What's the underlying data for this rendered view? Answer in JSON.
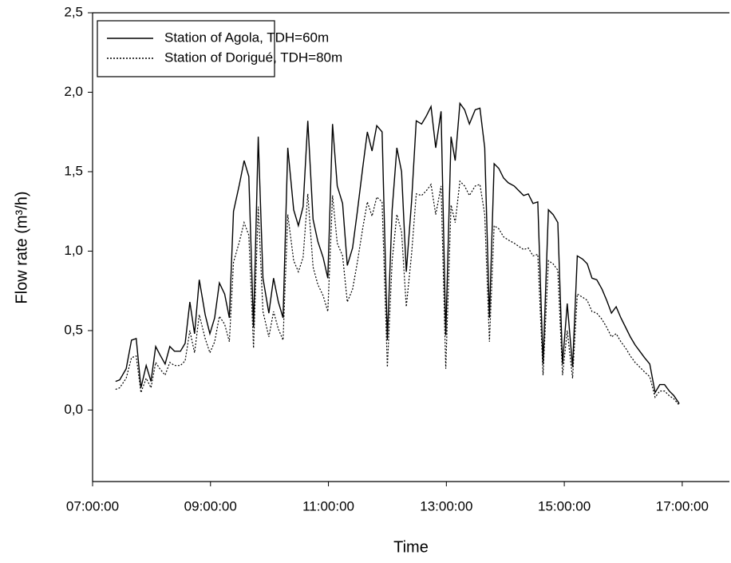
{
  "chart_data": {
    "type": "line",
    "x_label": "Time",
    "y_label": "Flow rate (m³/h)",
    "x": [
      7.39,
      7.46,
      7.57,
      7.66,
      7.74,
      7.82,
      7.91,
      7.99,
      8.07,
      8.14,
      8.23,
      8.31,
      8.39,
      8.49,
      8.57,
      8.65,
      8.73,
      8.81,
      8.91,
      8.99,
      9.07,
      9.15,
      9.24,
      9.32,
      9.39,
      9.49,
      9.57,
      9.65,
      9.73,
      9.81,
      9.89,
      9.99,
      10.07,
      10.15,
      10.23,
      10.31,
      10.41,
      10.49,
      10.57,
      10.65,
      10.74,
      10.82,
      10.91,
      10.99,
      11.07,
      11.15,
      11.24,
      11.32,
      11.41,
      11.49,
      11.58,
      11.66,
      11.74,
      11.82,
      11.91,
      12.0,
      12.08,
      12.16,
      12.24,
      12.32,
      12.41,
      12.49,
      12.58,
      12.66,
      12.74,
      12.82,
      12.91,
      12.99,
      13.08,
      13.15,
      13.23,
      13.31,
      13.39,
      13.49,
      13.57,
      13.65,
      13.73,
      13.81,
      13.89,
      13.97,
      14.05,
      14.15,
      14.23,
      14.31,
      14.39,
      14.47,
      14.55,
      14.64,
      14.73,
      14.81,
      14.89,
      14.97,
      15.05,
      15.14,
      15.22,
      15.31,
      15.39,
      15.47,
      15.55,
      15.64,
      15.72,
      15.8,
      15.88,
      15.96,
      16.04,
      16.12,
      16.2,
      16.28,
      16.36,
      16.45,
      16.54,
      16.62,
      16.7,
      16.78,
      16.86,
      16.95
    ],
    "series": [
      {
        "name": "Station of Agola, TDH=60m",
        "color": "#000000",
        "line_style": "solid",
        "values": [
          0.18,
          0.19,
          0.26,
          0.44,
          0.45,
          0.14,
          0.28,
          0.18,
          0.4,
          0.35,
          0.29,
          0.4,
          0.37,
          0.37,
          0.42,
          0.68,
          0.48,
          0.82,
          0.6,
          0.48,
          0.58,
          0.8,
          0.73,
          0.58,
          1.25,
          1.42,
          1.57,
          1.47,
          0.52,
          1.72,
          0.83,
          0.61,
          0.83,
          0.68,
          0.58,
          1.65,
          1.26,
          1.16,
          1.28,
          1.82,
          1.2,
          1.06,
          0.96,
          0.83,
          1.8,
          1.41,
          1.3,
          0.91,
          1.02,
          1.25,
          1.52,
          1.75,
          1.63,
          1.79,
          1.75,
          0.44,
          1.26,
          1.65,
          1.5,
          0.87,
          1.31,
          1.82,
          1.8,
          1.85,
          1.91,
          1.65,
          1.88,
          0.47,
          1.72,
          1.57,
          1.93,
          1.89,
          1.8,
          1.89,
          1.9,
          1.65,
          0.58,
          1.55,
          1.52,
          1.46,
          1.43,
          1.41,
          1.38,
          1.35,
          1.36,
          1.3,
          1.31,
          0.29,
          1.26,
          1.23,
          1.18,
          0.29,
          0.67,
          0.27,
          0.97,
          0.95,
          0.92,
          0.83,
          0.82,
          0.76,
          0.69,
          0.61,
          0.65,
          0.58,
          0.52,
          0.46,
          0.41,
          0.37,
          0.33,
          0.29,
          0.11,
          0.16,
          0.16,
          0.12,
          0.09,
          0.04
        ]
      },
      {
        "name": "Station of Dorigué, TDH=80m",
        "color": "#000000",
        "line_style": "dotted",
        "values": [
          0.13,
          0.14,
          0.2,
          0.33,
          0.34,
          0.11,
          0.2,
          0.14,
          0.3,
          0.26,
          0.22,
          0.3,
          0.28,
          0.28,
          0.31,
          0.5,
          0.36,
          0.6,
          0.45,
          0.36,
          0.43,
          0.59,
          0.54,
          0.43,
          0.93,
          1.06,
          1.18,
          1.1,
          0.39,
          1.28,
          0.62,
          0.46,
          0.62,
          0.51,
          0.44,
          1.23,
          0.94,
          0.87,
          0.96,
          1.36,
          0.9,
          0.79,
          0.72,
          0.62,
          1.35,
          1.05,
          0.97,
          0.68,
          0.76,
          0.93,
          1.14,
          1.31,
          1.22,
          1.34,
          1.31,
          0.27,
          0.94,
          1.23,
          1.12,
          0.65,
          0.98,
          1.36,
          1.35,
          1.38,
          1.42,
          1.23,
          1.41,
          0.26,
          1.29,
          1.18,
          1.44,
          1.41,
          1.35,
          1.41,
          1.42,
          1.23,
          0.43,
          1.16,
          1.14,
          1.09,
          1.07,
          1.05,
          1.03,
          1.01,
          1.02,
          0.97,
          0.98,
          0.22,
          0.94,
          0.92,
          0.88,
          0.22,
          0.5,
          0.2,
          0.73,
          0.71,
          0.69,
          0.62,
          0.61,
          0.57,
          0.52,
          0.46,
          0.48,
          0.43,
          0.39,
          0.34,
          0.3,
          0.27,
          0.24,
          0.21,
          0.08,
          0.12,
          0.12,
          0.09,
          0.07,
          0.03
        ]
      }
    ],
    "xlim": [
      7,
      17.8
    ],
    "xticks": [
      {
        "value": 7,
        "label": "07:00:00"
      },
      {
        "value": 9,
        "label": "09:00:00"
      },
      {
        "value": 11,
        "label": "11:00:00"
      },
      {
        "value": 13,
        "label": "13:00:00"
      },
      {
        "value": 15,
        "label": "15:00:00"
      },
      {
        "value": 17,
        "label": "17:00:00"
      }
    ],
    "ylim": [
      -0.45,
      2.5
    ],
    "yticks": [
      {
        "value": 0,
        "label": "0,0"
      },
      {
        "value": 0.5,
        "label": "0,5"
      },
      {
        "value": 1,
        "label": "1,0"
      },
      {
        "value": 1.5,
        "label": "1,5"
      },
      {
        "value": 2,
        "label": "2,0"
      },
      {
        "value": 2.5,
        "label": "2,5"
      }
    ],
    "grid": false,
    "legend": "upper left"
  }
}
